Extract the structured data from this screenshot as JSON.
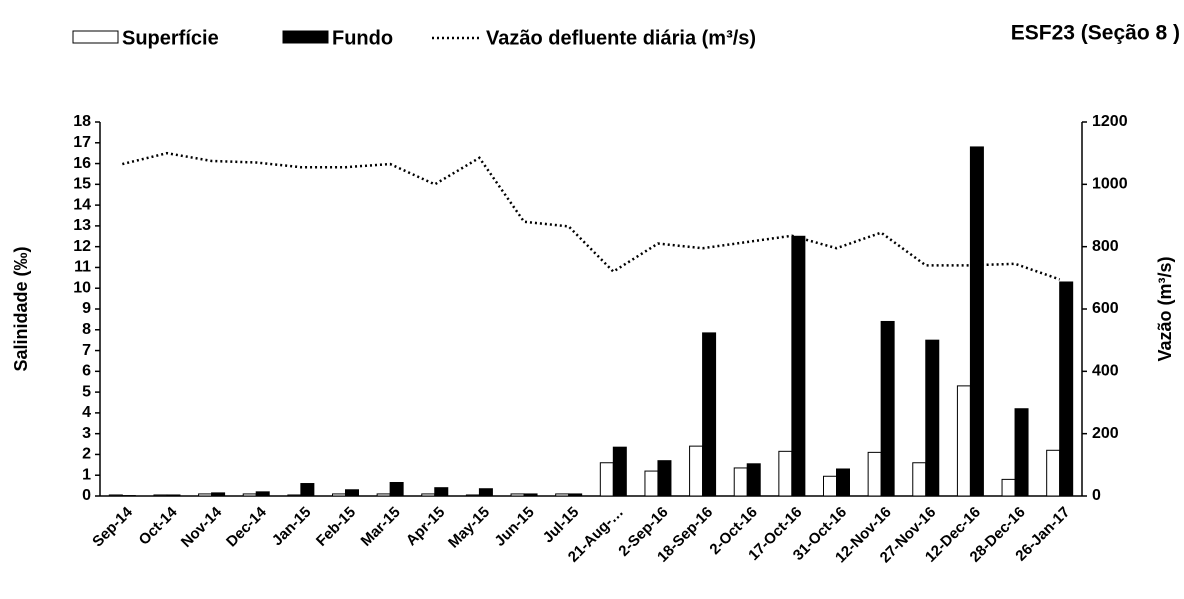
{
  "chart_data": {
    "type": "bar",
    "title": "ESF23 (Seção 8 )",
    "y_label": "Salinidade (‰)",
    "y2_label": "Vazão (m³/s)",
    "categories": [
      "Sep-14",
      "Oct-14",
      "Nov-14",
      "Dec-14",
      "Jan-15",
      "Feb-15",
      "Mar-15",
      "Apr-15",
      "May-15",
      "Jun-15",
      "Jul-15",
      "21-Aug-…",
      "2-Sep-16",
      "18-Sep-16",
      "2-Oct-16",
      "17-Oct-16",
      "31-Oct-16",
      "12-Nov-16",
      "27-Nov-16",
      "12-Dec-16",
      "28-Dec-16",
      "26-Jan-17"
    ],
    "series": [
      {
        "name": "Superfície",
        "type": "bar",
        "color": "#ffffff",
        "values": [
          0.05,
          0.05,
          0.1,
          0.1,
          0.05,
          0.1,
          0.1,
          0.1,
          0.05,
          0.1,
          0.1,
          1.6,
          1.2,
          2.4,
          1.35,
          2.15,
          0.95,
          2.1,
          1.6,
          5.3,
          0.8,
          2.2
        ]
      },
      {
        "name": "Fundo",
        "type": "bar",
        "color": "#000000",
        "values": [
          0.02,
          0.05,
          0.15,
          0.2,
          0.6,
          0.3,
          0.65,
          0.4,
          0.35,
          0.1,
          0.1,
          2.35,
          1.7,
          7.85,
          1.55,
          12.5,
          1.3,
          8.4,
          7.5,
          16.8,
          4.2,
          10.3
        ]
      },
      {
        "name": "Vazão defluente diária (m³/s)",
        "type": "line",
        "axis": "y2",
        "color": "#000000",
        "values": [
          1065,
          1100,
          1075,
          1070,
          1055,
          1055,
          1065,
          1000,
          1085,
          880,
          865,
          720,
          810,
          795,
          815,
          835,
          795,
          845,
          740,
          740,
          745,
          695
        ]
      }
    ],
    "ylim": [
      0,
      18
    ],
    "yticks": [
      0,
      1,
      2,
      3,
      4,
      5,
      6,
      7,
      8,
      9,
      10,
      11,
      12,
      13,
      14,
      15,
      16,
      17,
      18
    ],
    "y2lim": [
      0,
      1200
    ],
    "y2ticks": [
      0,
      200,
      400,
      600,
      800,
      1000,
      1200
    ]
  }
}
